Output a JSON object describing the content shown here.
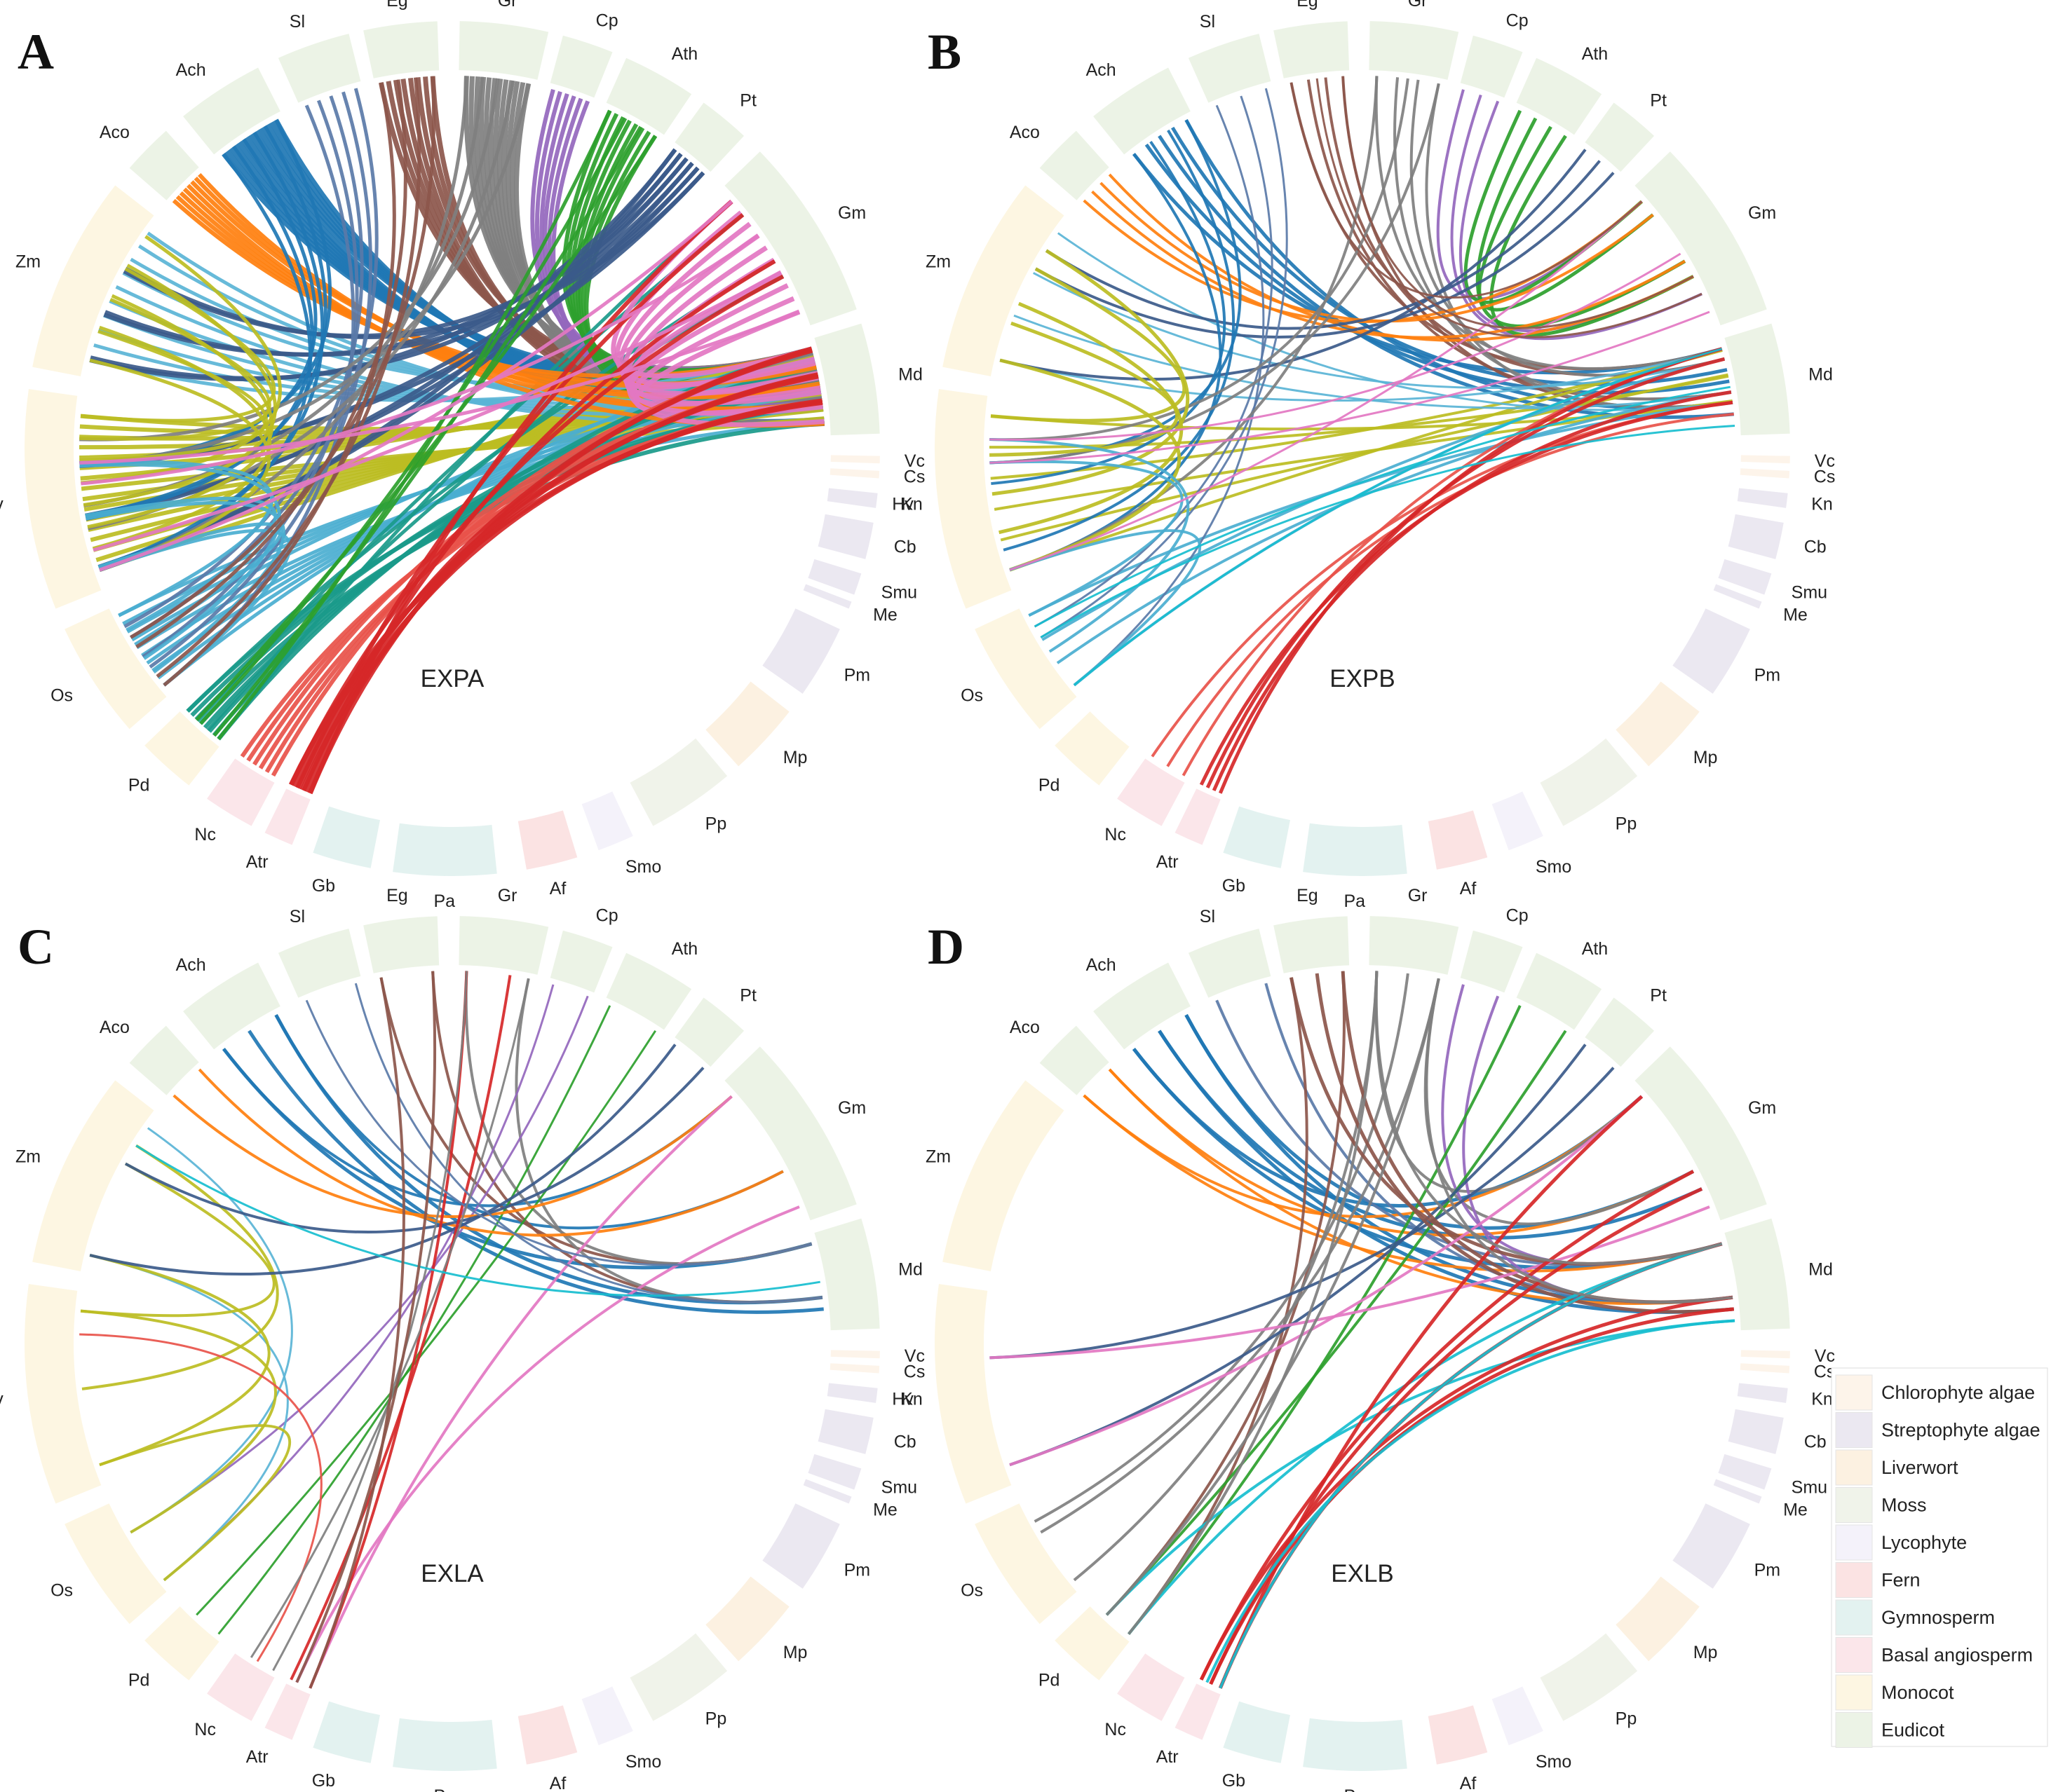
{
  "figure": {
    "panels": [
      {
        "id": "A",
        "letter": "A",
        "title": "EXPA"
      },
      {
        "id": "B",
        "letter": "B",
        "title": "EXPB"
      },
      {
        "id": "C",
        "letter": "C",
        "title": "EXLA"
      },
      {
        "id": "D",
        "letter": "D",
        "title": "EXLB"
      }
    ],
    "species": [
      {
        "code": "Md",
        "group": "Eudicot"
      },
      {
        "code": "Gm",
        "group": "Eudicot"
      },
      {
        "code": "Pt",
        "group": "Eudicot"
      },
      {
        "code": "Ath",
        "group": "Eudicot"
      },
      {
        "code": "Cp",
        "group": "Eudicot"
      },
      {
        "code": "Gr",
        "group": "Eudicot"
      },
      {
        "code": "Eg",
        "group": "Eudicot"
      },
      {
        "code": "Sl",
        "group": "Eudicot"
      },
      {
        "code": "Ach",
        "group": "Eudicot"
      },
      {
        "code": "Aco",
        "group": "Eudicot"
      },
      {
        "code": "Zm",
        "group": "Monocot"
      },
      {
        "code": "Hv",
        "group": "Monocot"
      },
      {
        "code": "Os",
        "group": "Monocot"
      },
      {
        "code": "Pd",
        "group": "Monocot"
      },
      {
        "code": "Nc",
        "group": "Basal angiosperm"
      },
      {
        "code": "Atr",
        "group": "Basal angiosperm"
      },
      {
        "code": "Gb",
        "group": "Gymnosperm"
      },
      {
        "code": "Pa",
        "group": "Gymnosperm"
      },
      {
        "code": "Af",
        "group": "Fern"
      },
      {
        "code": "Smo",
        "group": "Lycophyte"
      },
      {
        "code": "Pp",
        "group": "Moss"
      },
      {
        "code": "Mp",
        "group": "Liverwort"
      },
      {
        "code": "Pm",
        "group": "Streptophyte algae"
      },
      {
        "code": "Me",
        "group": "Streptophyte algae"
      },
      {
        "code": "Smu",
        "group": "Streptophyte algae"
      },
      {
        "code": "Cb",
        "group": "Streptophyte algae"
      },
      {
        "code": "Kn",
        "group": "Streptophyte algae"
      },
      {
        "code": "Cs",
        "group": "Chlorophyte algae"
      },
      {
        "code": "Vc",
        "group": "Chlorophyte algae"
      }
    ],
    "species_colors": {
      "Md": "#17becf",
      "Gm": "#e377c2",
      "Pt": "#3b5a8a",
      "Ath": "#2ca02c",
      "Cp": "#9467bd",
      "Gr": "#7f7f7f",
      "Eg": "#8c564b",
      "Sl": "#5a7aa8",
      "Ach": "#1f77b4",
      "Aco": "#ff7f0e",
      "Zm": "#5ab4d6",
      "Hv": "#bcbd22",
      "Os": "#4aaed0",
      "Pd": "#1a9a8a",
      "Nc": "#e8534a",
      "Atr": "#d62728"
    },
    "legend": [
      {
        "label": "Chlorophyte algae",
        "color": "#fdf4ea"
      },
      {
        "label": "Streptophyte algae",
        "color": "#ebe8f1"
      },
      {
        "label": "Liverwort",
        "color": "#fcf1e1"
      },
      {
        "label": "Moss",
        "color": "#f0f3ea"
      },
      {
        "label": "Lycophyte",
        "color": "#f4f2fa"
      },
      {
        "label": "Fern",
        "color": "#fbe3e3"
      },
      {
        "label": "Gymnosperm",
        "color": "#e3f2f0"
      },
      {
        "label": "Basal angiosperm",
        "color": "#fbe6ea"
      },
      {
        "label": "Monocot",
        "color": "#fdf6e2"
      },
      {
        "label": "Eudicot",
        "color": "#ecf3e6"
      }
    ]
  }
}
